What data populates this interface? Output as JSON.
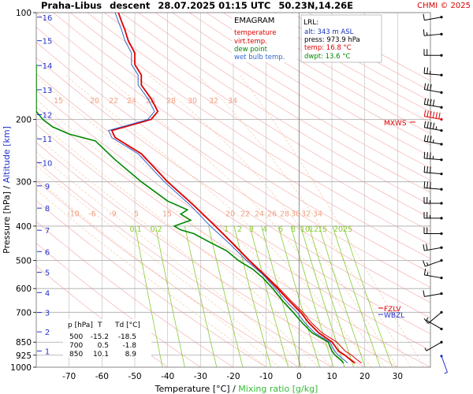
{
  "header": {
    "station": "Praha-Libus",
    "mode": "descent",
    "datetime": "28.07.2025 01:15 UTC",
    "coords": "50.23N,14.26E",
    "copyright": "CHMI © 2025"
  },
  "legend": {
    "title": "EMAGRAM",
    "items": [
      {
        "label": "temperature",
        "color": "#dd0000"
      },
      {
        "label": "virt.temp.",
        "color": "#dd0000"
      },
      {
        "label": "dew point",
        "color": "#008800"
      },
      {
        "label": "wet bulb temp.",
        "color": "#3366cc"
      }
    ]
  },
  "lrl": {
    "title": "LRL:",
    "lines": [
      {
        "text": "alt: 343 m ASL",
        "color": "#1133bb"
      },
      {
        "text": "press: 973.9 hPa",
        "color": "#000000"
      },
      {
        "text": "temp: 16.8 °C",
        "color": "#dd0000"
      },
      {
        "text": "dwpt: 13.6 °C",
        "color": "#008800"
      }
    ]
  },
  "markers": {
    "mxws": "MXWS",
    "fzlv": "FZLV",
    "wbzl": "WBZL"
  },
  "table": {
    "headers": [
      "p [hPa]",
      "T",
      "Td [°C]"
    ],
    "rows": [
      [
        "500",
        "-15.2",
        "-18.5"
      ],
      [
        "700",
        "0.5",
        "-1.8"
      ],
      [
        "850",
        "10.1",
        "8.9"
      ]
    ]
  },
  "chart_data": {
    "type": "line",
    "title": "Praha-Libus descent 28.07.2025 01:15 UTC 50.23N,14.26E",
    "xlabel": "Temperature [°C] / Mixing ratio [g/kg]",
    "xlabel_parts": [
      "Temperature [°C]",
      " / ",
      "Mixing ratio [g/kg]"
    ],
    "ylabel": "Pressure [hPa] / Altitude [km]",
    "ylabel_parts": [
      "Pressure [hPa]",
      " / ",
      "Altitude [km]"
    ],
    "xlim": [
      -80,
      40
    ],
    "ylim": [
      1000,
      100
    ],
    "y_scale": "log",
    "grid": true,
    "x_ticks": [
      -70,
      -60,
      -50,
      -40,
      -30,
      -20,
      -10,
      0,
      10,
      20,
      30
    ],
    "pressure_ticks": [
      100,
      200,
      300,
      400,
      500,
      600,
      700,
      850,
      925,
      1000
    ],
    "altitude_ticks": [
      {
        "km": 1,
        "p": 900
      },
      {
        "km": 2,
        "p": 795
      },
      {
        "km": 3,
        "p": 701
      },
      {
        "km": 4,
        "p": 616
      },
      {
        "km": 5,
        "p": 540
      },
      {
        "km": 6,
        "p": 472
      },
      {
        "km": 7,
        "p": 411
      },
      {
        "km": 8,
        "p": 356
      },
      {
        "km": 9,
        "p": 308
      },
      {
        "km": 10,
        "p": 265
      },
      {
        "km": 11,
        "p": 227
      },
      {
        "km": 12,
        "p": 194
      },
      {
        "km": 13,
        "p": 165
      },
      {
        "km": 14,
        "p": 141
      },
      {
        "km": 15,
        "p": 120
      },
      {
        "km": 16,
        "p": 103
      }
    ],
    "mixing_ratio_labels_upper": [
      "15",
      "20",
      "22",
      "24",
      "26",
      "28",
      "30",
      "32",
      "34"
    ],
    "mixing_ratio_labels_mid": [
      "-10",
      "-6",
      "-9",
      "5",
      "15",
      "20",
      "22",
      "24",
      "26",
      "28",
      "30",
      "32",
      "34"
    ],
    "mixing_ratio_labels_green": [
      "0.1",
      "0.2",
      "1",
      "2",
      "3",
      "4",
      "6",
      "8",
      "10",
      "12",
      "15",
      "20",
      "25"
    ],
    "series": [
      {
        "name": "temperature",
        "color": "#dd0000",
        "points": [
          [
            17,
            973.9
          ],
          [
            15.5,
            950
          ],
          [
            14,
            925
          ],
          [
            12,
            900
          ],
          [
            10.1,
            850
          ],
          [
            6,
            800
          ],
          [
            3,
            750
          ],
          [
            0.5,
            700
          ],
          [
            -3,
            650
          ],
          [
            -6.5,
            600
          ],
          [
            -10.5,
            550
          ],
          [
            -15.2,
            500
          ],
          [
            -20,
            450
          ],
          [
            -25.5,
            400
          ],
          [
            -32,
            350
          ],
          [
            -40,
            300
          ],
          [
            -48,
            250
          ],
          [
            -56,
            225
          ],
          [
            -57,
            215
          ],
          [
            -49,
            205
          ],
          [
            -45,
            200
          ],
          [
            -43,
            190
          ],
          [
            -45,
            175
          ],
          [
            -48,
            160
          ],
          [
            -48,
            150
          ],
          [
            -50,
            140
          ],
          [
            -50,
            130
          ],
          [
            -52,
            120
          ],
          [
            -53,
            112
          ],
          [
            -54,
            106
          ],
          [
            -55,
            100
          ]
        ]
      },
      {
        "name": "virt.temp.",
        "color": "#dd0000",
        "points": [
          [
            19,
            973.9
          ],
          [
            17.5,
            950
          ],
          [
            16,
            925
          ],
          [
            14,
            900
          ],
          [
            11.5,
            850
          ],
          [
            7,
            800
          ],
          [
            3.8,
            750
          ],
          [
            1.2,
            700
          ],
          [
            -2.4,
            650
          ],
          [
            -6,
            600
          ],
          [
            -10.2,
            550
          ],
          [
            -15,
            500
          ],
          [
            -19.8,
            450
          ],
          [
            -25.4,
            400
          ],
          [
            -32,
            350
          ],
          [
            -40,
            300
          ],
          [
            -48,
            250
          ],
          [
            -56,
            225
          ],
          [
            -57,
            215
          ],
          [
            -49,
            205
          ],
          [
            -45,
            200
          ],
          [
            -43,
            190
          ],
          [
            -45,
            175
          ],
          [
            -48,
            160
          ],
          [
            -48,
            150
          ],
          [
            -50,
            140
          ],
          [
            -50,
            130
          ],
          [
            -52,
            120
          ],
          [
            -53,
            112
          ],
          [
            -54,
            106
          ],
          [
            -55,
            100
          ]
        ]
      },
      {
        "name": "dew point",
        "color": "#008800",
        "points": [
          [
            13.6,
            973.9
          ],
          [
            12.5,
            950
          ],
          [
            11,
            925
          ],
          [
            10,
            900
          ],
          [
            8.9,
            850
          ],
          [
            4,
            800
          ],
          [
            1,
            750
          ],
          [
            -1.8,
            700
          ],
          [
            -5,
            650
          ],
          [
            -8,
            600
          ],
          [
            -11,
            560
          ],
          [
            -14,
            530
          ],
          [
            -18.5,
            500
          ],
          [
            -22,
            470
          ],
          [
            -28,
            440
          ],
          [
            -32,
            420
          ],
          [
            -36,
            410
          ],
          [
            -38,
            400
          ],
          [
            -33,
            385
          ],
          [
            -36,
            370
          ],
          [
            -34,
            360
          ],
          [
            -40,
            340
          ],
          [
            -48,
            300
          ],
          [
            -56,
            260
          ],
          [
            -62,
            230
          ],
          [
            -70,
            220
          ],
          [
            -75,
            210
          ],
          [
            -78,
            200
          ],
          [
            -80,
            190
          ],
          [
            -80,
            160
          ],
          [
            -80,
            140
          ]
        ]
      },
      {
        "name": "wet bulb temp.",
        "color": "#3366cc",
        "points": [
          [
            14.8,
            973.9
          ],
          [
            13.5,
            950
          ],
          [
            12,
            925
          ],
          [
            10.8,
            900
          ],
          [
            9.4,
            850
          ],
          [
            4.8,
            800
          ],
          [
            1.8,
            750
          ],
          [
            -0.6,
            700
          ],
          [
            -4,
            650
          ],
          [
            -7.2,
            600
          ],
          [
            -10.8,
            550
          ],
          [
            -16,
            500
          ],
          [
            -21,
            450
          ],
          [
            -27,
            400
          ],
          [
            -33,
            350
          ],
          [
            -41,
            300
          ],
          [
            -49,
            250
          ],
          [
            -57,
            225
          ],
          [
            -58,
            215
          ],
          [
            -50,
            205
          ],
          [
            -46,
            200
          ],
          [
            -44,
            190
          ],
          [
            -46,
            175
          ],
          [
            -49,
            160
          ],
          [
            -49,
            150
          ],
          [
            -51,
            140
          ],
          [
            -51,
            130
          ],
          [
            -53,
            120
          ],
          [
            -54,
            112
          ],
          [
            -55,
            106
          ],
          [
            -56,
            100
          ]
        ]
      }
    ]
  },
  "wind_profile": [
    {
      "p": 930,
      "dir": 160,
      "spd": 5,
      "color": "#2233cc"
    },
    {
      "p": 850,
      "dir": 240,
      "spd": 5
    },
    {
      "p": 780,
      "dir": 300,
      "spd": 5
    },
    {
      "p": 700,
      "dir": 230,
      "spd": 10
    },
    {
      "p": 620,
      "dir": 260,
      "spd": 10
    },
    {
      "p": 560,
      "dir": 280,
      "spd": 15
    },
    {
      "p": 500,
      "dir": 250,
      "spd": 15
    },
    {
      "p": 460,
      "dir": 260,
      "spd": 20
    },
    {
      "p": 420,
      "dir": 270,
      "spd": 20
    },
    {
      "p": 380,
      "dir": 270,
      "spd": 25
    },
    {
      "p": 345,
      "dir": 270,
      "spd": 25
    },
    {
      "p": 315,
      "dir": 275,
      "spd": 30
    },
    {
      "p": 285,
      "dir": 275,
      "spd": 30
    },
    {
      "p": 260,
      "dir": 275,
      "spd": 35
    },
    {
      "p": 235,
      "dir": 280,
      "spd": 35
    },
    {
      "p": 215,
      "dir": 280,
      "spd": 45
    },
    {
      "p": 200,
      "dir": 280,
      "spd": 60,
      "color": "#dd0000"
    },
    {
      "p": 185,
      "dir": 280,
      "spd": 40
    },
    {
      "p": 168,
      "dir": 280,
      "spd": 30
    },
    {
      "p": 150,
      "dir": 275,
      "spd": 25
    },
    {
      "p": 132,
      "dir": 270,
      "spd": 20
    },
    {
      "p": 115,
      "dir": 265,
      "spd": 15
    },
    {
      "p": 103,
      "dir": 260,
      "spd": 10
    }
  ],
  "colors": {
    "dry_adiabat": "#f4a6a6",
    "moist_adiabat": "#f5c49a",
    "mixing_ratio": "#88cc33",
    "isotherm": "#bbbbbb",
    "grid": "#a9a9a9",
    "axis_blue": "#2233cc"
  }
}
